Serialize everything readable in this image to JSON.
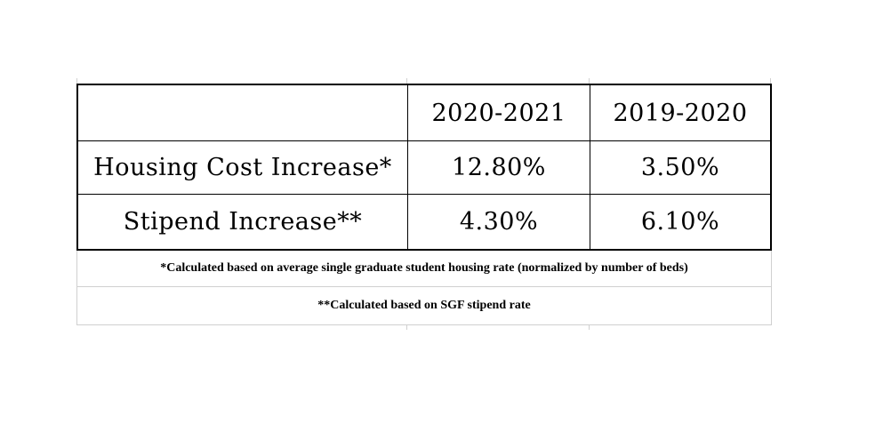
{
  "chart_data": {
    "type": "table",
    "columns": [
      "2020-2021",
      "2019-2020"
    ],
    "rows": [
      {
        "label": "Housing Cost Increase*",
        "values": [
          "12.80%",
          "3.50%"
        ]
      },
      {
        "label": "Stipend Increase**",
        "values": [
          "4.30%",
          "6.10%"
        ]
      }
    ],
    "footnotes": [
      "*Calculated based on average single graduate student housing rate (normalized by number of beds)",
      "**Calculated based on SGF stipend rate"
    ]
  },
  "colors": {
    "background": "#ffffff",
    "text": "#000000",
    "table_border": "#000000",
    "gridline_light": "#d0d0d0"
  }
}
